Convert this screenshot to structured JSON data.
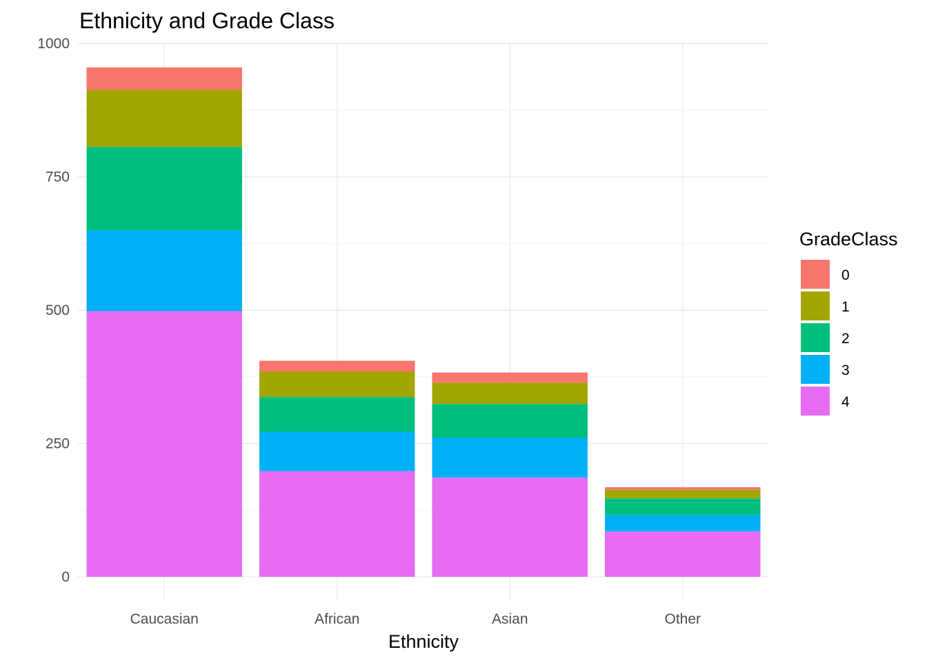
{
  "chart_data": {
    "type": "bar",
    "stacked": true,
    "title": "Ethnicity and Grade Class",
    "xlabel": "Ethnicity",
    "ylabel": "",
    "categories": [
      "Caucasian",
      "African",
      "Asian",
      "Other"
    ],
    "ylim": [
      0,
      1000
    ],
    "yticks": [
      0,
      250,
      500,
      750,
      1000
    ],
    "grid": true,
    "legend": {
      "title": "GradeClass",
      "position": "right"
    },
    "series": [
      {
        "name": "0",
        "color": "#F8766D",
        "values": [
          42,
          20,
          19,
          5
        ]
      },
      {
        "name": "1",
        "color": "#A3A500",
        "values": [
          107,
          48,
          40,
          16
        ]
      },
      {
        "name": "2",
        "color": "#00BF7D",
        "values": [
          156,
          65,
          63,
          31
        ]
      },
      {
        "name": "3",
        "color": "#00B0F6",
        "values": [
          152,
          74,
          75,
          31
        ]
      },
      {
        "name": "4",
        "color": "#E76BF3",
        "values": [
          498,
          198,
          186,
          85
        ]
      }
    ],
    "stack_order_bottom_to_top": [
      "4",
      "3",
      "2",
      "1",
      "0"
    ]
  }
}
